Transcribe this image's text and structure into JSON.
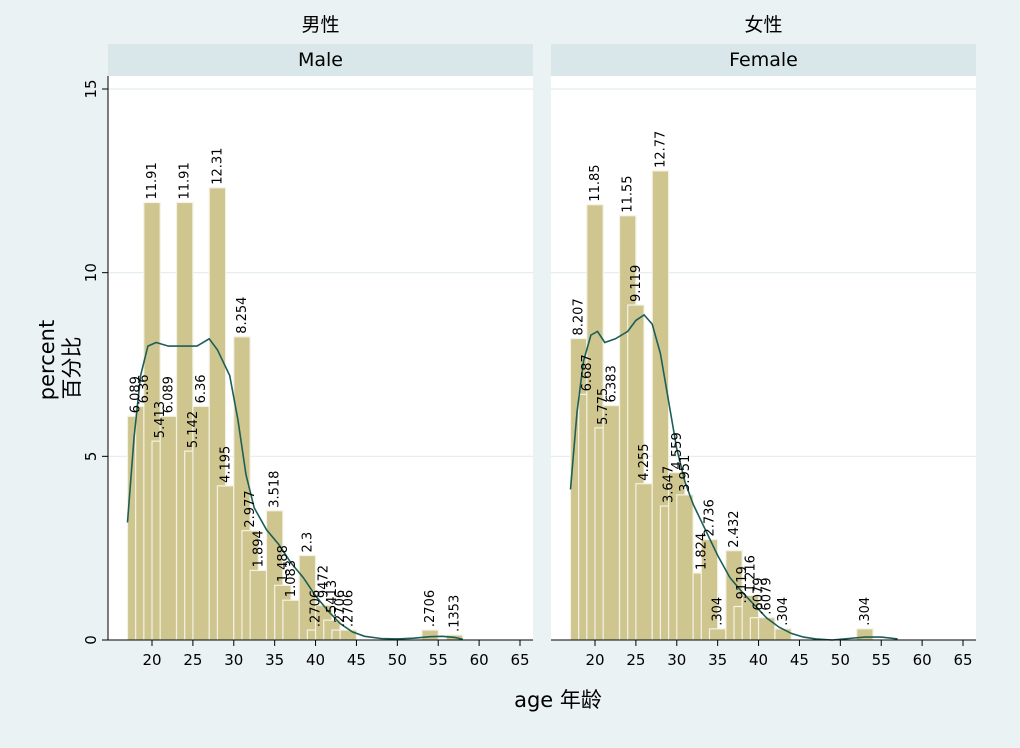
{
  "chart_data": {
    "type": "bar",
    "title": "",
    "xlabel": "age   年龄",
    "ylabel_line1": "percent",
    "ylabel_line2": "百分比",
    "ylim": [
      0,
      15
    ],
    "yticks": [
      0,
      5,
      10,
      15
    ],
    "xticks": [
      20,
      25,
      30,
      35,
      40,
      45,
      50,
      55,
      60,
      65
    ],
    "xlim": [
      14.5,
      67
    ],
    "bin_width": 2,
    "grid": true,
    "overlay": "kernel density (line)",
    "panels": [
      {
        "group_title": "男性",
        "strip_label": "Male",
        "bars": [
          {
            "x": 18,
            "value": 6.089,
            "label": "6.089"
          },
          {
            "x": 19,
            "value": 6.36,
            "label": "6.36"
          },
          {
            "x": 20,
            "value": 11.91,
            "label": "11.91"
          },
          {
            "x": 21,
            "value": 5.413,
            "label": "5.413"
          },
          {
            "x": 22,
            "value": 6.089,
            "label": "6.089"
          },
          {
            "x": 24,
            "value": 11.91,
            "label": "11.91"
          },
          {
            "x": 25,
            "value": 5.142,
            "label": "5.142"
          },
          {
            "x": 26,
            "value": 6.36,
            "label": "6.36"
          },
          {
            "x": 28,
            "value": 12.31,
            "label": "12.31"
          },
          {
            "x": 29,
            "value": 4.195,
            "label": "4.195"
          },
          {
            "x": 31,
            "value": 8.254,
            "label": "8.254"
          },
          {
            "x": 32,
            "value": 2.977,
            "label": "2.977"
          },
          {
            "x": 33,
            "value": 1.894,
            "label": "1.894"
          },
          {
            "x": 35,
            "value": 3.518,
            "label": "3.518"
          },
          {
            "x": 36,
            "value": 1.488,
            "label": "1.488"
          },
          {
            "x": 37,
            "value": 1.083,
            "label": "1.083"
          },
          {
            "x": 39,
            "value": 2.3,
            "label": "2.3"
          },
          {
            "x": 40,
            "value": 0.2706,
            "label": ".2706"
          },
          {
            "x": 41,
            "value": 0.9472,
            "label": ".9472"
          },
          {
            "x": 42,
            "value": 0.5413,
            "label": ".5413"
          },
          {
            "x": 43,
            "value": 0.2706,
            "label": ".2706"
          },
          {
            "x": 44,
            "value": 0.2706,
            "label": ".2706"
          },
          {
            "x": 54,
            "value": 0.2706,
            "label": ".2706"
          },
          {
            "x": 57,
            "value": 0.1353,
            "label": ".1353"
          }
        ],
        "density": [
          [
            17,
            3.2
          ],
          [
            17.8,
            5.5
          ],
          [
            18.6,
            7.2
          ],
          [
            19.5,
            8.0
          ],
          [
            20.5,
            8.1
          ],
          [
            22,
            8.0
          ],
          [
            24,
            8.0
          ],
          [
            25.5,
            8.0
          ],
          [
            27,
            8.2
          ],
          [
            28,
            7.9
          ],
          [
            29.5,
            7.2
          ],
          [
            30.5,
            6.0
          ],
          [
            31.5,
            4.5
          ],
          [
            32.5,
            3.6
          ],
          [
            34,
            3.0
          ],
          [
            35.5,
            2.6
          ],
          [
            37,
            2.1
          ],
          [
            38.5,
            1.7
          ],
          [
            40,
            1.2
          ],
          [
            41.5,
            0.8
          ],
          [
            43,
            0.45
          ],
          [
            44.5,
            0.22
          ],
          [
            46,
            0.1
          ],
          [
            48,
            0.04
          ],
          [
            50,
            0.03
          ],
          [
            52,
            0.05
          ],
          [
            54,
            0.09
          ],
          [
            55.5,
            0.1
          ],
          [
            57,
            0.07
          ],
          [
            58,
            0.02
          ]
        ]
      },
      {
        "group_title": "女性",
        "strip_label": "Female",
        "bars": [
          {
            "x": 18,
            "value": 8.207,
            "label": "8.207"
          },
          {
            "x": 19,
            "value": 6.687,
            "label": "6.687"
          },
          {
            "x": 20,
            "value": 11.85,
            "label": "11.85"
          },
          {
            "x": 21,
            "value": 5.775,
            "label": "5.775"
          },
          {
            "x": 22,
            "value": 6.383,
            "label": "6.383"
          },
          {
            "x": 24,
            "value": 11.55,
            "label": "11.55"
          },
          {
            "x": 25,
            "value": 9.119,
            "label": "9.119"
          },
          {
            "x": 26,
            "value": 4.255,
            "label": "4.255"
          },
          {
            "x": 28,
            "value": 12.77,
            "label": "12.77"
          },
          {
            "x": 29,
            "value": 3.647,
            "label": "3.647"
          },
          {
            "x": 30,
            "value": 4.559,
            "label": "4.559"
          },
          {
            "x": 31,
            "value": 3.951,
            "label": "3.951"
          },
          {
            "x": 33,
            "value": 1.824,
            "label": "1.824"
          },
          {
            "x": 34,
            "value": 2.736,
            "label": "2.736"
          },
          {
            "x": 35,
            "value": 0.304,
            "label": ".304"
          },
          {
            "x": 37,
            "value": 2.432,
            "label": "2.432"
          },
          {
            "x": 38,
            "value": 0.9119,
            "label": ".9119"
          },
          {
            "x": 39,
            "value": 1.216,
            "label": "1.216"
          },
          {
            "x": 40,
            "value": 0.6079,
            "label": ".6079"
          },
          {
            "x": 41,
            "value": 0.6079,
            "label": ".6079"
          },
          {
            "x": 43,
            "value": 0.304,
            "label": ".304"
          },
          {
            "x": 53,
            "value": 0.304,
            "label": ".304"
          }
        ],
        "density": [
          [
            17,
            4.1
          ],
          [
            17.8,
            6.2
          ],
          [
            18.6,
            7.6
          ],
          [
            19.5,
            8.3
          ],
          [
            20.3,
            8.4
          ],
          [
            21.2,
            8.1
          ],
          [
            22.5,
            8.2
          ],
          [
            24,
            8.4
          ],
          [
            25,
            8.7
          ],
          [
            26,
            8.85
          ],
          [
            27,
            8.6
          ],
          [
            28,
            7.8
          ],
          [
            29,
            6.5
          ],
          [
            30,
            5.2
          ],
          [
            31,
            4.3
          ],
          [
            32,
            3.7
          ],
          [
            33.5,
            3.0
          ],
          [
            35,
            2.3
          ],
          [
            36.5,
            1.7
          ],
          [
            38,
            1.3
          ],
          [
            39.5,
            0.95
          ],
          [
            41,
            0.6
          ],
          [
            42.5,
            0.35
          ],
          [
            44,
            0.18
          ],
          [
            45.5,
            0.08
          ],
          [
            47,
            0.03
          ],
          [
            49,
            0.0
          ],
          [
            51,
            0.04
          ],
          [
            53,
            0.08
          ],
          [
            55,
            0.08
          ],
          [
            57,
            0.03
          ]
        ]
      }
    ]
  }
}
